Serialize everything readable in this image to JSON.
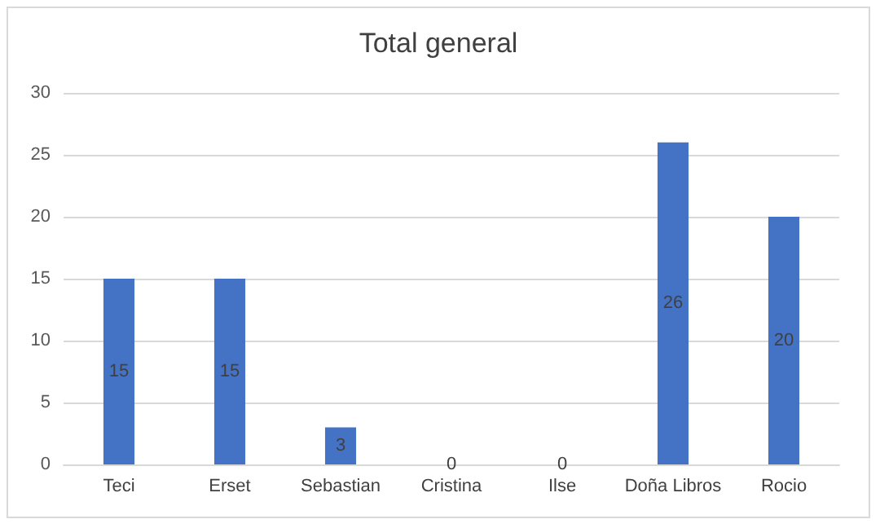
{
  "chart_data": {
    "type": "bar",
    "title": "Total general",
    "categories": [
      "Teci",
      "Erset",
      "Sebastian",
      "Cristina",
      "Ilse",
      "Doña Libros",
      "Rocio"
    ],
    "values": [
      15,
      15,
      3,
      0,
      0,
      26,
      20
    ],
    "color": "#4472c4",
    "ylim": [
      0,
      30
    ],
    "yticks": [
      0,
      5,
      10,
      15,
      20,
      25,
      30
    ],
    "grid": "y",
    "data_labels": true
  }
}
